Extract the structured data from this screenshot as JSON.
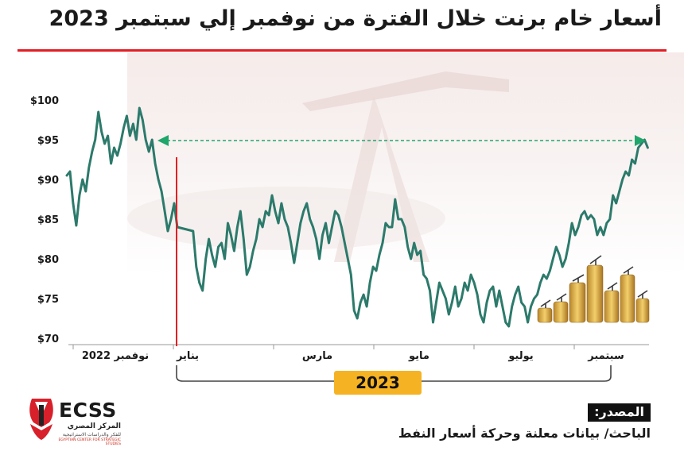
{
  "title": "أسعار خام برنت خلال الفترة من نوفمبر إلي سبتمبر 2023",
  "colors": {
    "line": "#2c7a6b",
    "marker": "#e31e24",
    "arrow": "#1fa66a",
    "badge": "#f5b323",
    "title_rule": "#e31e24"
  },
  "chart_data": {
    "type": "line",
    "title": "أسعار خام برنت خلال الفترة من نوفمبر إلي سبتمبر 2023",
    "xlabel": "",
    "ylabel": "",
    "ylim": [
      70,
      100
    ],
    "y_ticks": [
      "$100",
      "$95",
      "$90",
      "$85",
      "$80",
      "$75",
      "$70"
    ],
    "x_tick_labels": [
      {
        "label": "نوفمبر 2022",
        "month_index": 0.5
      },
      {
        "label": "يناير",
        "month_index": 2.1
      },
      {
        "label": "مارس",
        "month_index": 4.2
      },
      {
        "label": "مايو",
        "month_index": 6.2
      },
      {
        "label": "يوليو",
        "month_index": 8.2
      },
      {
        "label": "سبتمبر",
        "month_index": 10.2
      }
    ],
    "year_label": "2023",
    "reference_line_month_index": 1.04,
    "arrow_level": 95,
    "series": [
      {
        "name": "",
        "points": [
          [
            0.0,
            90.5
          ],
          [
            0.05,
            91.0
          ],
          [
            0.1,
            87.0
          ],
          [
            0.15,
            84.2
          ],
          [
            0.2,
            88.0
          ],
          [
            0.25,
            90.0
          ],
          [
            0.3,
            88.5
          ],
          [
            0.35,
            91.5
          ],
          [
            0.4,
            93.5
          ],
          [
            0.45,
            95.0
          ],
          [
            0.5,
            98.5
          ],
          [
            0.55,
            96.0
          ],
          [
            0.6,
            94.5
          ],
          [
            0.65,
            95.5
          ],
          [
            0.7,
            92.0
          ],
          [
            0.75,
            94.0
          ],
          [
            0.8,
            93.0
          ],
          [
            0.85,
            94.5
          ],
          [
            0.9,
            96.5
          ],
          [
            0.95,
            98.0
          ],
          [
            1.0,
            95.5
          ],
          [
            1.05,
            97.0
          ],
          [
            1.1,
            95.0
          ],
          [
            1.15,
            99.0
          ],
          [
            1.2,
            97.5
          ],
          [
            1.25,
            95.0
          ],
          [
            1.3,
            93.5
          ],
          [
            1.35,
            95.0
          ],
          [
            1.4,
            92.0
          ],
          [
            1.45,
            90.0
          ],
          [
            1.5,
            88.5
          ],
          [
            1.55,
            86.0
          ],
          [
            1.6,
            83.5
          ],
          [
            1.65,
            85.0
          ],
          [
            1.7,
            87.0
          ],
          [
            1.75,
            84.0
          ],
          [
            2.0,
            83.5
          ],
          [
            2.05,
            79.0
          ],
          [
            2.1,
            77.0
          ],
          [
            2.15,
            76.0
          ],
          [
            2.2,
            80.0
          ],
          [
            2.25,
            82.5
          ],
          [
            2.3,
            80.5
          ],
          [
            2.35,
            79.0
          ],
          [
            2.4,
            81.5
          ],
          [
            2.45,
            82.0
          ],
          [
            2.5,
            80.0
          ],
          [
            2.55,
            84.5
          ],
          [
            2.6,
            83.0
          ],
          [
            2.65,
            81.0
          ],
          [
            2.7,
            84.0
          ],
          [
            2.75,
            86.0
          ],
          [
            2.8,
            82.5
          ],
          [
            2.85,
            78.0
          ],
          [
            2.9,
            79.0
          ],
          [
            2.95,
            81.0
          ],
          [
            3.0,
            82.5
          ],
          [
            3.05,
            85.0
          ],
          [
            3.1,
            84.0
          ],
          [
            3.15,
            86.0
          ],
          [
            3.2,
            85.5
          ],
          [
            3.25,
            88.0
          ],
          [
            3.3,
            86.0
          ],
          [
            3.35,
            84.5
          ],
          [
            3.4,
            87.0
          ],
          [
            3.45,
            85.0
          ],
          [
            3.5,
            84.0
          ],
          [
            3.55,
            82.0
          ],
          [
            3.6,
            79.5
          ],
          [
            3.65,
            82.0
          ],
          [
            3.7,
            84.5
          ],
          [
            3.75,
            86.0
          ],
          [
            3.8,
            87.0
          ],
          [
            3.85,
            85.0
          ],
          [
            3.9,
            84.0
          ],
          [
            3.95,
            82.5
          ],
          [
            4.0,
            80.0
          ],
          [
            4.05,
            83.0
          ],
          [
            4.1,
            84.5
          ],
          [
            4.15,
            82.0
          ],
          [
            4.2,
            84.0
          ],
          [
            4.25,
            86.0
          ],
          [
            4.3,
            85.5
          ],
          [
            4.35,
            84.0
          ],
          [
            4.5,
            78.0
          ],
          [
            4.55,
            73.5
          ],
          [
            4.6,
            72.5
          ],
          [
            4.65,
            74.5
          ],
          [
            4.7,
            75.5
          ],
          [
            4.75,
            74.0
          ],
          [
            4.8,
            77.0
          ],
          [
            4.85,
            79.0
          ],
          [
            4.9,
            78.5
          ],
          [
            4.95,
            80.5
          ],
          [
            5.0,
            82.0
          ],
          [
            5.05,
            84.5
          ],
          [
            5.1,
            84.0
          ],
          [
            5.15,
            84.0
          ],
          [
            5.2,
            87.5
          ],
          [
            5.25,
            85.0
          ],
          [
            5.3,
            85.0
          ],
          [
            5.35,
            84.0
          ],
          [
            5.4,
            81.5
          ],
          [
            5.45,
            80.0
          ],
          [
            5.5,
            82.0
          ],
          [
            5.55,
            80.5
          ],
          [
            5.6,
            81.0
          ],
          [
            5.65,
            78.0
          ],
          [
            5.7,
            77.5
          ],
          [
            5.75,
            76.0
          ],
          [
            5.8,
            72.0
          ],
          [
            5.85,
            74.5
          ],
          [
            5.9,
            77.0
          ],
          [
            5.95,
            76.0
          ],
          [
            6.0,
            75.0
          ],
          [
            6.05,
            73.0
          ],
          [
            6.1,
            74.5
          ],
          [
            6.15,
            76.5
          ],
          [
            6.2,
            74.0
          ],
          [
            6.25,
            75.0
          ],
          [
            6.3,
            77.0
          ],
          [
            6.35,
            76.0
          ],
          [
            6.4,
            78.0
          ],
          [
            6.45,
            77.0
          ],
          [
            6.5,
            75.5
          ],
          [
            6.55,
            73.0
          ],
          [
            6.6,
            72.0
          ],
          [
            6.65,
            74.5
          ],
          [
            6.7,
            76.0
          ],
          [
            6.75,
            76.5
          ],
          [
            6.8,
            74.0
          ],
          [
            6.85,
            76.0
          ],
          [
            6.9,
            74.0
          ],
          [
            6.95,
            72.0
          ],
          [
            7.0,
            71.5
          ],
          [
            7.05,
            74.0
          ],
          [
            7.1,
            75.5
          ],
          [
            7.15,
            76.5
          ],
          [
            7.2,
            74.5
          ],
          [
            7.25,
            74.0
          ],
          [
            7.3,
            72.0
          ],
          [
            7.35,
            74.0
          ],
          [
            7.4,
            75.0
          ],
          [
            7.45,
            75.5
          ],
          [
            7.5,
            77.0
          ],
          [
            7.55,
            78.0
          ],
          [
            7.6,
            77.5
          ],
          [
            7.65,
            78.5
          ],
          [
            7.7,
            80.0
          ],
          [
            7.75,
            81.5
          ],
          [
            7.8,
            80.5
          ],
          [
            7.85,
            79.0
          ],
          [
            7.9,
            80.0
          ],
          [
            7.95,
            82.0
          ],
          [
            8.0,
            84.5
          ],
          [
            8.05,
            83.0
          ],
          [
            8.1,
            84.0
          ],
          [
            8.15,
            85.5
          ],
          [
            8.2,
            86.0
          ],
          [
            8.25,
            85.0
          ],
          [
            8.3,
            85.5
          ],
          [
            8.35,
            85.0
          ],
          [
            8.4,
            83.0
          ],
          [
            8.45,
            84.0
          ],
          [
            8.5,
            83.0
          ],
          [
            8.55,
            84.5
          ],
          [
            8.6,
            85.0
          ],
          [
            8.65,
            88.0
          ],
          [
            8.7,
            87.0
          ],
          [
            8.75,
            88.5
          ],
          [
            8.8,
            90.0
          ],
          [
            8.85,
            91.0
          ],
          [
            8.9,
            90.5
          ],
          [
            8.95,
            92.5
          ],
          [
            9.0,
            92.0
          ],
          [
            9.05,
            94.0
          ],
          [
            9.1,
            94.5
          ],
          [
            9.15,
            95.0
          ],
          [
            9.2,
            94.0
          ]
        ]
      }
    ]
  },
  "source": {
    "label": "المصدر:",
    "text": "الباحث/ بيانات معلنة وحركة أسعار النفط"
  },
  "logo": {
    "name": "ECSS",
    "sub": "المركز المصري",
    "sub2": "للفكر والدراسات الاستراتيجية",
    "sub3": "EGYPTIAN CENTER FOR STRATEGIC STUDIES"
  }
}
